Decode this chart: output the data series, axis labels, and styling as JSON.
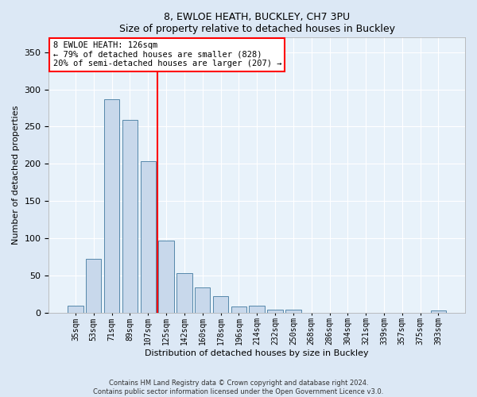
{
  "title1": "8, EWLOE HEATH, BUCKLEY, CH7 3PU",
  "title2": "Size of property relative to detached houses in Buckley",
  "xlabel": "Distribution of detached houses by size in Buckley",
  "ylabel": "Number of detached properties",
  "categories": [
    "35sqm",
    "53sqm",
    "71sqm",
    "89sqm",
    "107sqm",
    "125sqm",
    "142sqm",
    "160sqm",
    "178sqm",
    "196sqm",
    "214sqm",
    "232sqm",
    "250sqm",
    "268sqm",
    "286sqm",
    "304sqm",
    "321sqm",
    "339sqm",
    "357sqm",
    "375sqm",
    "393sqm"
  ],
  "values": [
    9,
    72,
    287,
    259,
    203,
    97,
    53,
    34,
    22,
    8,
    9,
    4,
    4,
    0,
    0,
    0,
    0,
    0,
    0,
    0,
    3
  ],
  "bar_color": "#c8d8eb",
  "bar_edge_color": "#5588aa",
  "vline_x_idx": 5,
  "vline_color": "red",
  "annotation_line1": "8 EWLOE HEATH: 126sqm",
  "annotation_line2": "← 79% of detached houses are smaller (828)",
  "annotation_line3": "20% of semi-detached houses are larger (207) →",
  "annotation_box_color": "white",
  "annotation_box_edge_color": "red",
  "ylim": [
    0,
    370
  ],
  "yticks": [
    0,
    50,
    100,
    150,
    200,
    250,
    300,
    350
  ],
  "footer1": "Contains HM Land Registry data © Crown copyright and database right 2024.",
  "footer2": "Contains public sector information licensed under the Open Government Licence v3.0.",
  "bg_color": "#dce8f5",
  "plot_bg_color": "#e8f2fa",
  "grid_color": "#ffffff",
  "title_fontsize": 9,
  "axis_label_fontsize": 8,
  "tick_fontsize": 7,
  "annotation_fontsize": 7.5
}
